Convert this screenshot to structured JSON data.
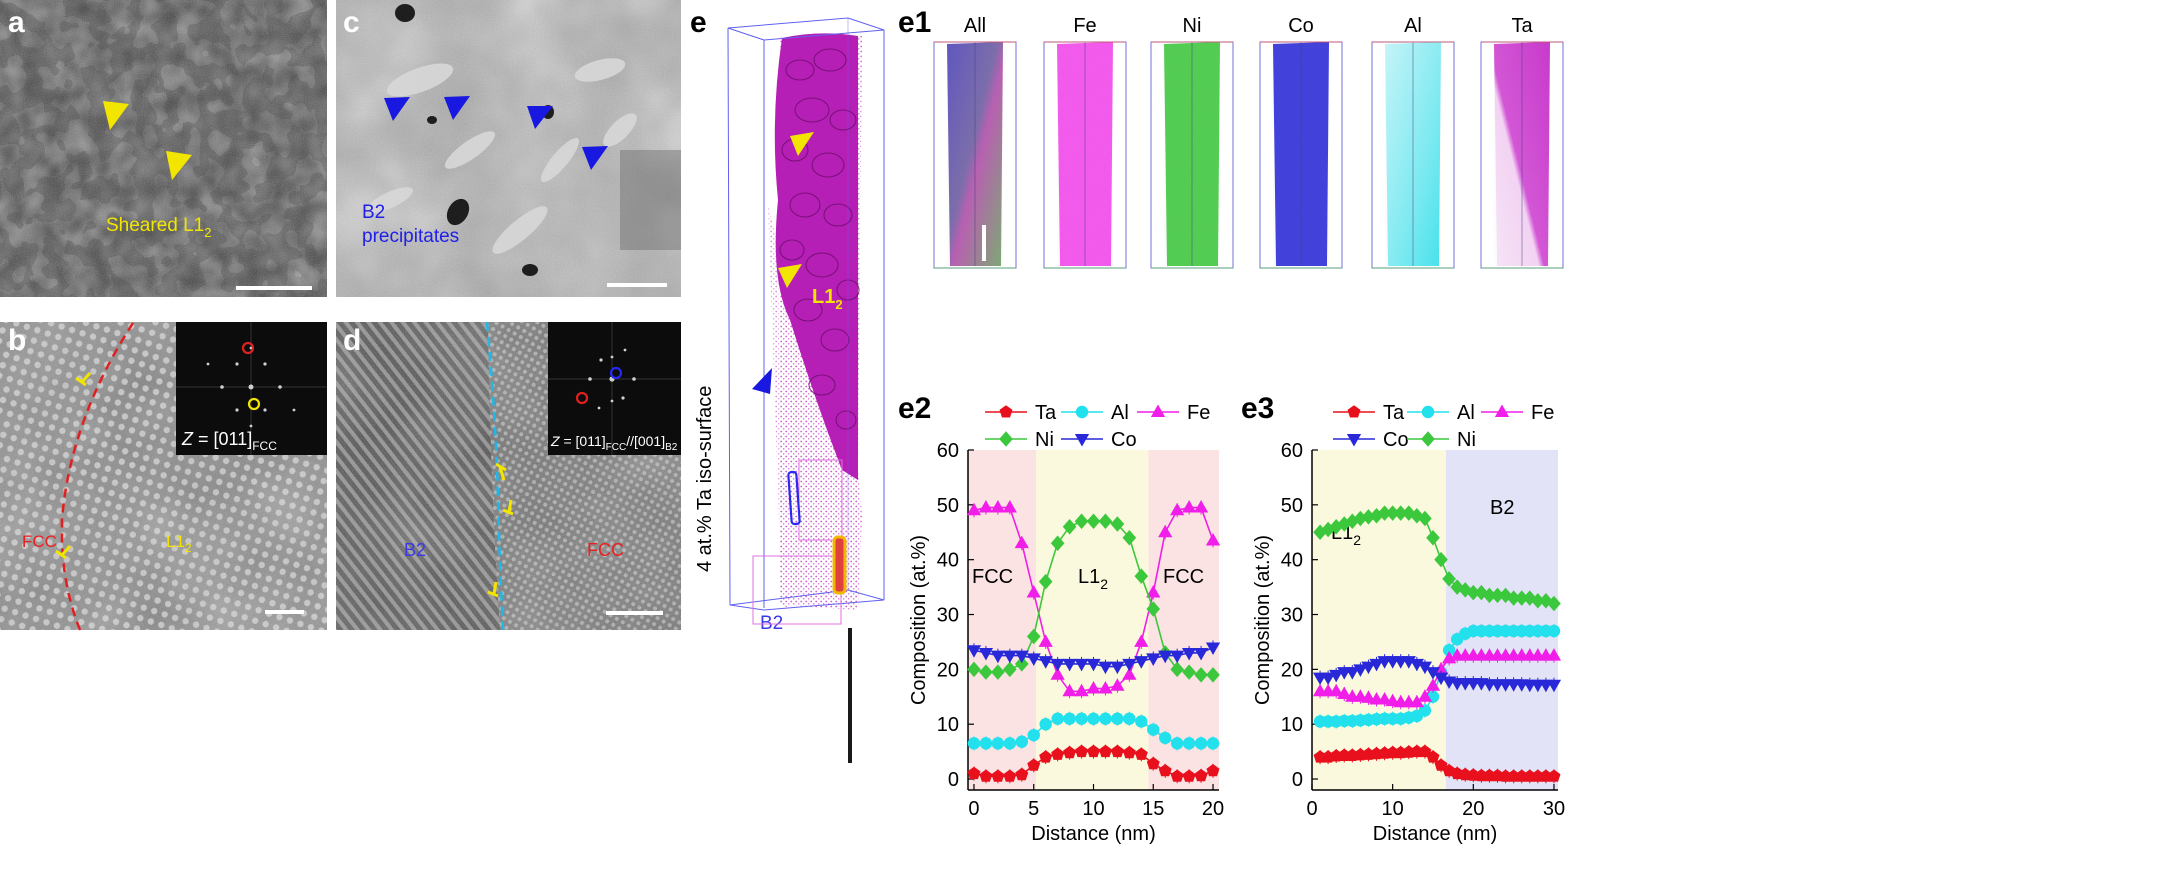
{
  "panels": {
    "a": {
      "letter": "a",
      "label": "Sheared L1",
      "label_sub": "2"
    },
    "b": {
      "letter": "b",
      "inset_z": "Z",
      "inset_eq": " = [011]",
      "inset_sub": "FCC",
      "fcc": "FCC",
      "l12": "L1",
      "l12_sub": "2"
    },
    "c": {
      "letter": "c",
      "label_line1": "B2",
      "label_line2": "precipitates"
    },
    "d": {
      "letter": "d",
      "inset_z": "Z",
      "inset_eq": " = [011]",
      "inset_sub1": "FCC",
      "inset_mid": "//[001]",
      "inset_sub2": "B2",
      "b2": "B2",
      "fcc": "FCC"
    },
    "e": {
      "letter": "e",
      "side_label": "4 at.% Ta iso-surface",
      "l12": "L1",
      "l12_sub": "2",
      "b2": "B2"
    },
    "e1": {
      "letter": "e1",
      "elements": [
        "All",
        "Fe",
        "Ni",
        "Co",
        "Al",
        "Ta"
      ]
    },
    "e2": {
      "letter": "e2"
    },
    "e3": {
      "letter": "e3"
    }
  },
  "colors": {
    "Ta": "#e8101c",
    "Al": "#22e0ec",
    "Fe": "#f01ee8",
    "Ni": "#3cc83c",
    "Co": "#2828d8",
    "dashed_red": "#e02020",
    "dashed_cyan": "#20b8e8",
    "arrow_yellow": "#f2e600",
    "arrow_blue": "#1818e0"
  },
  "chart_data": [
    {
      "type": "line",
      "panel": "e2",
      "xlabel": "Distance (nm)",
      "ylabel": "Composition (at.%)",
      "xlim": [
        -0.5,
        20.5
      ],
      "ylim": [
        -2,
        60
      ],
      "xticks": [
        0,
        5,
        10,
        15,
        20
      ],
      "yticks": [
        0,
        10,
        20,
        30,
        40,
        50,
        60
      ],
      "regions": [
        {
          "label": "FCC",
          "x": [
            -0.5,
            5.2
          ],
          "color": "#fbe3e3"
        },
        {
          "label": "L1",
          "label_sub": "2",
          "x": [
            5.2,
            14.6
          ],
          "color": "#fbf9dd"
        },
        {
          "label": "FCC",
          "x": [
            14.6,
            20.5
          ],
          "color": "#fbe3e3"
        }
      ],
      "x": [
        0,
        1,
        2,
        3,
        4,
        5,
        6,
        7,
        8,
        9,
        10,
        11,
        12,
        13,
        14,
        15,
        16,
        17,
        18,
        19,
        20
      ],
      "series": [
        {
          "name": "Ta",
          "marker": "pentagon",
          "values": [
            1,
            0.5,
            0.5,
            0.5,
            0.8,
            2.5,
            4,
            4.5,
            4.8,
            5,
            5,
            5,
            5,
            4.8,
            4.5,
            2.8,
            1.5,
            0.5,
            0.5,
            0.6,
            1.5
          ]
        },
        {
          "name": "Al",
          "marker": "circle",
          "values": [
            6.5,
            6.5,
            6.5,
            6.5,
            6.8,
            8,
            10,
            11,
            11,
            11,
            11,
            11,
            11,
            11,
            10.5,
            9,
            7.5,
            6.5,
            6.5,
            6.5,
            6.5
          ]
        },
        {
          "name": "Fe",
          "marker": "triangle-up",
          "values": [
            49,
            49.5,
            49.5,
            49.5,
            43,
            34,
            25,
            19,
            16,
            16,
            16.5,
            16.5,
            17,
            19,
            25,
            34,
            45,
            49,
            49.5,
            49.5,
            43.5
          ]
        },
        {
          "name": "Ni",
          "marker": "diamond",
          "values": [
            20,
            19.5,
            19.5,
            20,
            21,
            26,
            36,
            43,
            46,
            47,
            47,
            47,
            46.5,
            44,
            37,
            31,
            23,
            20,
            19.5,
            19,
            19
          ]
        },
        {
          "name": "Co",
          "marker": "triangle-down",
          "values": [
            23.5,
            23,
            22.5,
            22.5,
            22.5,
            22,
            21.5,
            21,
            21,
            21,
            21,
            20.5,
            20.5,
            21,
            21.5,
            22,
            22.5,
            22.5,
            23,
            23,
            24
          ]
        }
      ]
    },
    {
      "type": "line",
      "panel": "e3",
      "xlabel": "Distance (nm)",
      "ylabel": "Composition (at.%)",
      "xlim": [
        0,
        30.5
      ],
      "ylim": [
        -2,
        60
      ],
      "xticks": [
        0,
        10,
        20,
        30
      ],
      "yticks": [
        0,
        10,
        20,
        30,
        40,
        50,
        60
      ],
      "regions": [
        {
          "label": "L1",
          "label_sub": "2",
          "x": [
            0,
            16.6
          ],
          "color": "#fbf9dd"
        },
        {
          "label": "B2",
          "x": [
            16.6,
            30.5
          ],
          "color": "#e3e3f8"
        }
      ],
      "x": [
        1,
        2,
        3,
        4,
        5,
        6,
        7,
        8,
        9,
        10,
        11,
        12,
        13,
        14,
        15,
        16,
        17,
        18,
        19,
        20,
        21,
        22,
        23,
        24,
        25,
        26,
        27,
        28,
        29,
        30
      ],
      "series": [
        {
          "name": "Ta",
          "marker": "pentagon",
          "values": [
            4,
            4,
            4.2,
            4.3,
            4.3,
            4.4,
            4.5,
            4.6,
            4.7,
            4.8,
            4.8,
            4.9,
            5,
            5,
            4,
            2.5,
            1.5,
            1,
            0.8,
            0.7,
            0.6,
            0.6,
            0.6,
            0.5,
            0.5,
            0.5,
            0.5,
            0.5,
            0.5,
            0.5
          ]
        },
        {
          "name": "Al",
          "marker": "circle",
          "values": [
            10.5,
            10.5,
            10.5,
            10.6,
            10.6,
            10.7,
            10.8,
            10.9,
            11,
            11,
            11,
            11.2,
            11.5,
            12.5,
            15,
            19.5,
            23.5,
            25.5,
            26.5,
            27,
            27,
            27,
            27,
            27,
            27,
            27,
            27,
            27,
            27,
            27
          ]
        },
        {
          "name": "Fe",
          "marker": "triangle-up",
          "values": [
            16,
            16,
            16,
            15.5,
            15,
            15,
            14.8,
            14.5,
            14.5,
            14.2,
            14,
            14,
            14,
            15,
            17,
            20,
            22,
            22.5,
            22.5,
            22.5,
            22.5,
            22.5,
            22.5,
            22.5,
            22.5,
            22.5,
            22.5,
            22.5,
            22.5,
            22.5
          ]
        },
        {
          "name": "Co",
          "marker": "triangle-down",
          "values": [
            18.5,
            18.5,
            19,
            19.5,
            19.5,
            20,
            20.5,
            21,
            21.5,
            21.5,
            21.5,
            21.5,
            21,
            20.5,
            19.5,
            18.5,
            17.8,
            17.5,
            17.5,
            17.5,
            17.5,
            17.3,
            17.3,
            17.3,
            17.3,
            17.3,
            17.2,
            17.2,
            17.2,
            17.2
          ]
        },
        {
          "name": "Ni",
          "marker": "diamond",
          "values": [
            45,
            45.5,
            46,
            46.5,
            47,
            47.5,
            47.8,
            48,
            48.5,
            48.5,
            48.5,
            48.5,
            48,
            47.5,
            44,
            40,
            36.5,
            35,
            34.5,
            34,
            34,
            33.5,
            33.5,
            33.5,
            33,
            33,
            33,
            32.5,
            32.5,
            32
          ]
        }
      ]
    }
  ]
}
